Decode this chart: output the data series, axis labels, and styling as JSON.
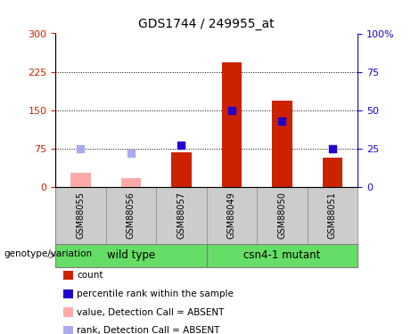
{
  "title": "GDS1744 / 249955_at",
  "categories": [
    "GSM88055",
    "GSM88056",
    "GSM88057",
    "GSM88049",
    "GSM88050",
    "GSM88051"
  ],
  "group_labels": [
    "wild type",
    "csn4-1 mutant"
  ],
  "count_values": [
    null,
    null,
    68,
    243,
    168,
    58
  ],
  "count_absent_values": [
    28,
    18,
    null,
    null,
    null,
    null
  ],
  "rank_values": [
    null,
    null,
    27,
    50,
    43,
    25
  ],
  "rank_absent_values": [
    25,
    22,
    null,
    null,
    null,
    null
  ],
  "ylim_left": [
    0,
    300
  ],
  "ylim_right": [
    0,
    100
  ],
  "yticks_left": [
    0,
    75,
    150,
    225,
    300
  ],
  "yticks_right": [
    0,
    25,
    50,
    75,
    100
  ],
  "bar_color_present": "#cc2200",
  "bar_color_absent": "#ffaaaa",
  "dot_color_present": "#2200cc",
  "dot_color_absent": "#aaaaee",
  "bg_color_labels": "#cccccc",
  "bg_color_groups": "#66dd66",
  "left_ylabel_color": "#cc2200",
  "right_ylabel_color": "#2200cc",
  "bar_width": 0.4,
  "dot_size": 28,
  "legend_items": [
    {
      "label": "count",
      "color": "#cc2200"
    },
    {
      "label": "percentile rank within the sample",
      "color": "#2200cc"
    },
    {
      "label": "value, Detection Call = ABSENT",
      "color": "#ffaaaa"
    },
    {
      "label": "rank, Detection Call = ABSENT",
      "color": "#aaaaee"
    }
  ]
}
